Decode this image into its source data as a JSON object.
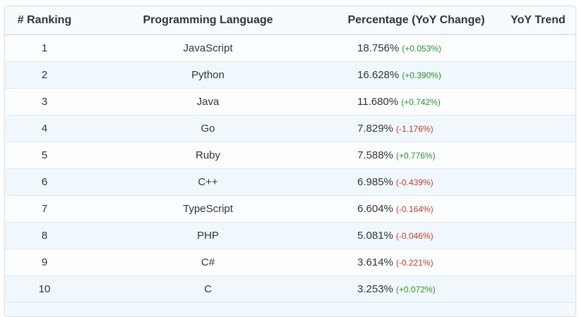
{
  "table": {
    "headers": {
      "rank": "# Ranking",
      "language": "Programming Language",
      "percentage": "Percentage (YoY Change)",
      "trend": "YoY Trend"
    },
    "rows": [
      {
        "rank": "1",
        "language": "JavaScript",
        "percentage": "18.756%",
        "change": "(+0.053%)",
        "direction": "up"
      },
      {
        "rank": "2",
        "language": "Python",
        "percentage": "16.628%",
        "change": "(+0.390%)",
        "direction": "up"
      },
      {
        "rank": "3",
        "language": "Java",
        "percentage": "11.680%",
        "change": "(+0.742%)",
        "direction": "up"
      },
      {
        "rank": "4",
        "language": "Go",
        "percentage": "7.829%",
        "change": "(-1.176%)",
        "direction": "down"
      },
      {
        "rank": "5",
        "language": "Ruby",
        "percentage": "7.588%",
        "change": "(+0.776%)",
        "direction": "up"
      },
      {
        "rank": "6",
        "language": "C++",
        "percentage": "6.985%",
        "change": "(-0.439%)",
        "direction": "down"
      },
      {
        "rank": "7",
        "language": "TypeScript",
        "percentage": "6.604%",
        "change": "(-0.164%)",
        "direction": "down"
      },
      {
        "rank": "8",
        "language": "PHP",
        "percentage": "5.081%",
        "change": "(-0.046%)",
        "direction": "down"
      },
      {
        "rank": "9",
        "language": "C#",
        "percentage": "3.614%",
        "change": "(-0.221%)",
        "direction": "down"
      },
      {
        "rank": "10",
        "language": "C",
        "percentage": "3.253%",
        "change": "(+0.072%)",
        "direction": "up"
      }
    ]
  },
  "colors": {
    "up": "#2a8f2a",
    "down": "#c0392b"
  }
}
